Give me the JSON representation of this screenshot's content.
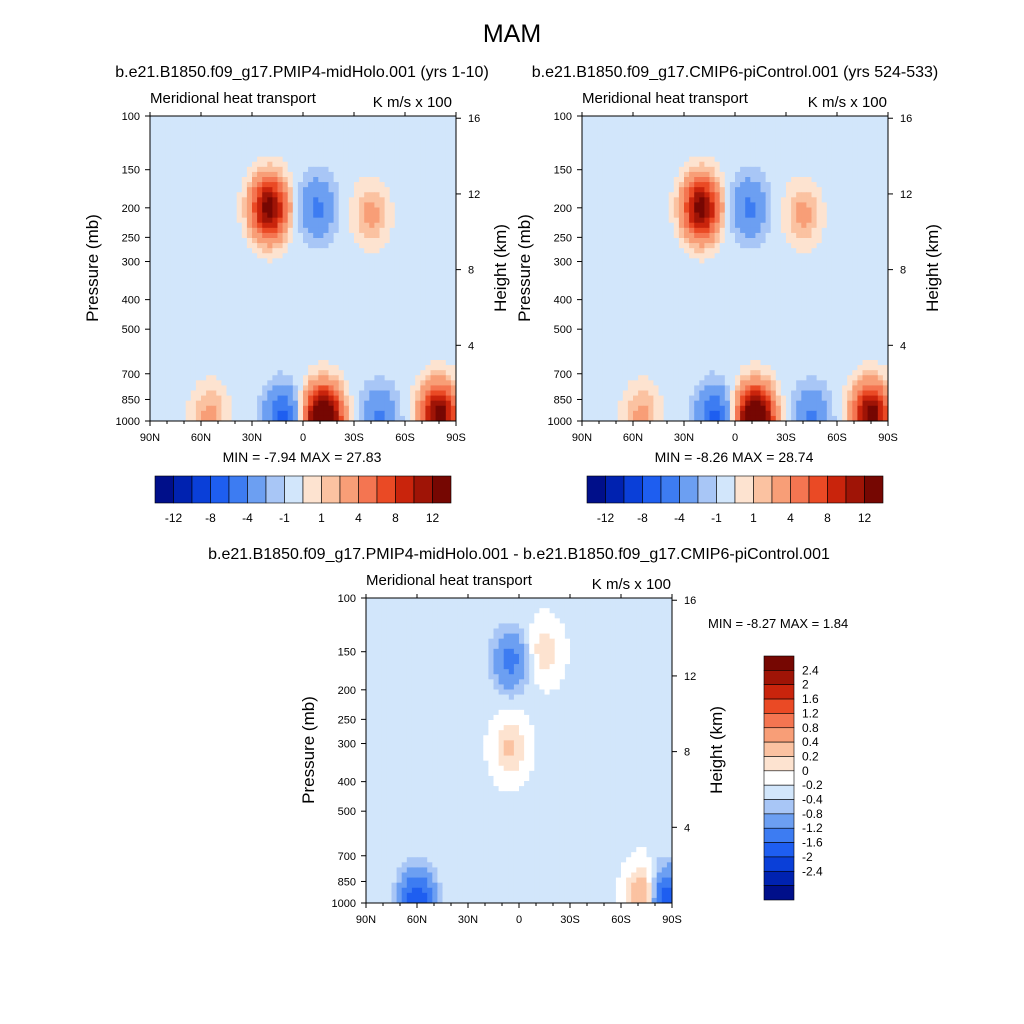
{
  "figure_title": "MAM",
  "colors": {
    "main_scale": [
      "#000f8a",
      "#0022b0",
      "#0a3fd8",
      "#1e5ef0",
      "#3d7cf2",
      "#6c9ff2",
      "#a8c6f6",
      "#d2e6fb",
      "#fde3d0",
      "#fbc2a1",
      "#f89e77",
      "#f47551",
      "#ea4a25",
      "#c9240c",
      "#9f1406",
      "#760702"
    ],
    "diff_scale": [
      "#000f8a",
      "#0022b0",
      "#0a3fd8",
      "#1e5ef0",
      "#3d7cf2",
      "#6c9ff2",
      "#a8c6f6",
      "#d2e6fb",
      "#ffffff",
      "#fde3d0",
      "#fbc2a1",
      "#f89e77",
      "#f47551",
      "#ea4a25",
      "#c9240c",
      "#9f1406",
      "#760702"
    ]
  },
  "panels": [
    {
      "case_title": "b.e21.B1850.f09_g17.PMIP4-midHolo.001 (yrs 1-10)",
      "left_title": "Meridional heat transport",
      "right_title": "K m/s x 100",
      "y_label": "Pressure (mb)",
      "y2_label": "Height (km)",
      "stats": "MIN =  -7.94  MAX =  27.83"
    },
    {
      "case_title": "b.e21.B1850.f09_g17.CMIP6-piControl.001 (yrs 524-533)",
      "left_title": "Meridional heat transport",
      "right_title": "K m/s x 100",
      "y_label": "Pressure (mb)",
      "y2_label": "Height (km)",
      "stats": "MIN =  -8.26  MAX =  28.74"
    },
    {
      "case_title": "b.e21.B1850.f09_g17.PMIP4-midHolo.001 - b.e21.B1850.f09_g17.CMIP6-piControl.001",
      "left_title": "Meridional heat transport",
      "right_title": "K m/s x 100",
      "y_label": "Pressure (mb)",
      "y2_label": "Height (km)",
      "stats": "MIN =  -8.27  MAX =    1.84"
    }
  ],
  "main_colorbar_labels": [
    "-12",
    "-8",
    "-4",
    "-1",
    "1",
    "4",
    "8",
    "12"
  ],
  "diff_colorbar_labels": [
    "2.4",
    "2",
    "1.6",
    "1.2",
    "0.8",
    "0.4",
    "0.2",
    "0",
    "-0.2",
    "-0.4",
    "-0.8",
    "-1.2",
    "-1.6",
    "-2",
    "-2.4"
  ],
  "chart_data": [
    {
      "type": "heatmap",
      "title": "Meridional heat transport",
      "units": "K m/s x 100",
      "xlabel": "",
      "ylabel": "Pressure (mb)",
      "y2label": "Height (km)",
      "x_ticks": [
        "90N",
        "60N",
        "30N",
        "0",
        "30S",
        "60S",
        "90S"
      ],
      "y_ticks": [
        100,
        150,
        200,
        250,
        300,
        400,
        500,
        700,
        850,
        1000
      ],
      "y2_ticks": [
        16,
        12,
        8,
        4
      ],
      "ylim": [
        1000,
        100
      ],
      "xlim": [
        90,
        -90
      ],
      "min": -7.94,
      "max": 27.83,
      "features": [
        {
          "lat": 20,
          "p": 200,
          "value": 14
        },
        {
          "lat": -8,
          "p": 200,
          "value": -4
        },
        {
          "lat": -40,
          "p": 210,
          "value": 3
        },
        {
          "lat": 12,
          "p": 980,
          "value": -6
        },
        {
          "lat": -12,
          "p": 980,
          "value": 20
        },
        {
          "lat": -45,
          "p": 980,
          "value": -4
        },
        {
          "lat": -80,
          "p": 950,
          "value": 14
        },
        {
          "lat": 55,
          "p": 960,
          "value": 3
        }
      ]
    },
    {
      "type": "heatmap",
      "title": "Meridional heat transport",
      "units": "K m/s x 100",
      "xlabel": "",
      "ylabel": "Pressure (mb)",
      "y2label": "Height (km)",
      "x_ticks": [
        "90N",
        "60N",
        "30N",
        "0",
        "30S",
        "60S",
        "90S"
      ],
      "y_ticks": [
        100,
        150,
        200,
        250,
        300,
        400,
        500,
        700,
        850,
        1000
      ],
      "y2_ticks": [
        16,
        12,
        8,
        4
      ],
      "ylim": [
        1000,
        100
      ],
      "xlim": [
        90,
        -90
      ],
      "min": -8.26,
      "max": 28.74,
      "features": [
        {
          "lat": 20,
          "p": 200,
          "value": 14
        },
        {
          "lat": -8,
          "p": 200,
          "value": -4
        },
        {
          "lat": -40,
          "p": 210,
          "value": 3
        },
        {
          "lat": 12,
          "p": 980,
          "value": -6
        },
        {
          "lat": -12,
          "p": 980,
          "value": 20
        },
        {
          "lat": -45,
          "p": 980,
          "value": -4
        },
        {
          "lat": -80,
          "p": 950,
          "value": 14
        },
        {
          "lat": 55,
          "p": 960,
          "value": 3
        }
      ]
    },
    {
      "type": "heatmap",
      "title": "Meridional heat transport",
      "units": "K m/s x 100",
      "xlabel": "",
      "ylabel": "Pressure (mb)",
      "y2label": "Height (km)",
      "x_ticks": [
        "90N",
        "60N",
        "30N",
        "0",
        "30S",
        "60S",
        "90S"
      ],
      "y_ticks": [
        100,
        150,
        200,
        250,
        300,
        400,
        500,
        700,
        850,
        1000
      ],
      "y2_ticks": [
        16,
        12,
        8,
        4
      ],
      "ylim": [
        1000,
        100
      ],
      "xlim": [
        90,
        -90
      ],
      "min": -8.27,
      "max": 1.84,
      "features": [
        {
          "lat": 5,
          "p": 160,
          "value": -0.9
        },
        {
          "lat": 5,
          "p": 310,
          "value": 0.5
        },
        {
          "lat": -15,
          "p": 150,
          "value": 0.4
        },
        {
          "lat": 60,
          "p": 980,
          "value": -1.5
        },
        {
          "lat": -75,
          "p": 960,
          "value": 1.2
        },
        {
          "lat": -85,
          "p": 970,
          "value": -1.8
        }
      ]
    }
  ]
}
